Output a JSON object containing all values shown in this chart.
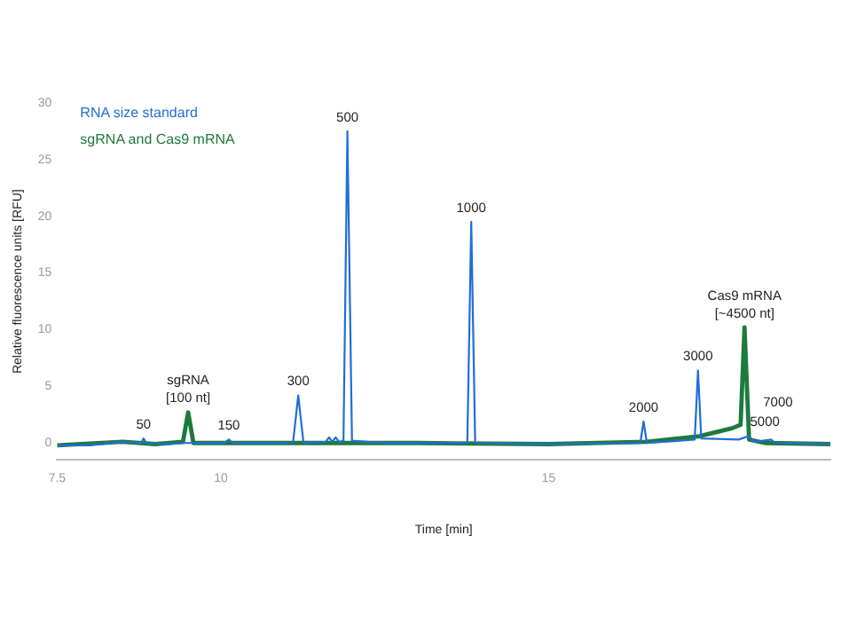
{
  "chart_data": {
    "type": "line",
    "xlabel": "Time [min]",
    "ylabel": "Relative fluorescence units [RFU]",
    "xlim": [
      7.5,
      19.3
    ],
    "xticks": [
      {
        "value": 7.5,
        "label": "7.5"
      },
      10,
      15
    ],
    "ylim": [
      -1.5,
      30
    ],
    "yticks": [
      0,
      5,
      10,
      15,
      20,
      25,
      30
    ],
    "grid": false,
    "legend": "top left",
    "marker": "none",
    "line_style": "solid",
    "series": [
      {
        "name": "RNA size standard",
        "color": "#1f6fd6",
        "x": [
          7.5,
          8.0,
          8.5,
          8.78,
          8.82,
          8.86,
          9.2,
          9.45,
          10.05,
          10.12,
          10.18,
          11.1,
          11.18,
          11.26,
          11.6,
          11.65,
          11.7,
          11.75,
          11.8,
          11.87,
          11.93,
          12.0,
          12.5,
          13.76,
          13.82,
          13.88,
          15.0,
          16.4,
          16.45,
          16.5,
          17.0,
          17.23,
          17.28,
          17.33,
          17.9,
          18.05,
          18.15,
          18.4,
          18.45,
          19.3
        ],
        "values": [
          -0.2,
          -0.2,
          0.1,
          0.0,
          0.4,
          0.0,
          -0.1,
          0.0,
          0.0,
          0.3,
          0.0,
          0.0,
          4.2,
          0.0,
          0.1,
          0.5,
          0.1,
          0.5,
          0.1,
          0.2,
          27.5,
          0.2,
          0.0,
          0.0,
          19.5,
          0.0,
          -0.1,
          0.0,
          1.9,
          0.0,
          0.2,
          0.3,
          6.4,
          0.4,
          0.3,
          0.6,
          0.1,
          0.3,
          0.0,
          -0.1
        ]
      },
      {
        "name": "sgRNA and Cas9 mRNA",
        "color": "#1e7a3c",
        "x": [
          7.5,
          8.5,
          9.0,
          9.42,
          9.5,
          9.58,
          11.0,
          13.0,
          15.0,
          16.5,
          17.3,
          17.8,
          17.93,
          17.99,
          18.06,
          18.3,
          19.3
        ],
        "values": [
          -0.2,
          0.1,
          -0.1,
          0.1,
          2.7,
          0.0,
          0.0,
          0.0,
          -0.1,
          0.1,
          0.6,
          1.3,
          1.6,
          10.2,
          0.3,
          0.0,
          -0.1
        ]
      }
    ],
    "annotations": [
      {
        "text": "50",
        "x": 8.82,
        "y": 0.4
      },
      {
        "text": "sgRNA\n[100 nt]",
        "x": 9.5,
        "y": 2.7
      },
      {
        "text": "150",
        "x": 10.12,
        "y": 0.3
      },
      {
        "text": "300",
        "x": 11.18,
        "y": 4.2
      },
      {
        "text": "500",
        "x": 11.93,
        "y": 27.5
      },
      {
        "text": "1000",
        "x": 13.82,
        "y": 19.5
      },
      {
        "text": "2000",
        "x": 16.45,
        "y": 1.9
      },
      {
        "text": "3000",
        "x": 17.28,
        "y": 6.4
      },
      {
        "text": "Cas9 mRNA\n[~4500 nt]",
        "x": 17.99,
        "y": 10.2
      },
      {
        "text": "5000",
        "x": 18.3,
        "y": 0.6
      },
      {
        "text": "7000",
        "x": 18.5,
        "y": 0.3
      }
    ]
  }
}
